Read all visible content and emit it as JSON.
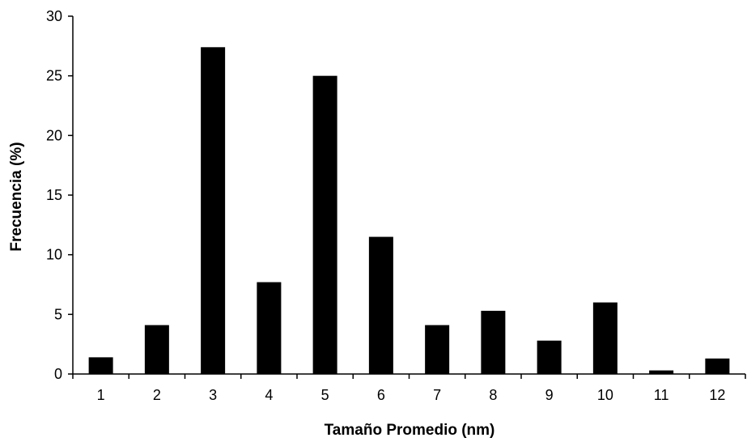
{
  "chart_data": {
    "type": "bar",
    "title": "",
    "xlabel": "Tamaño Promedio (nm)",
    "ylabel": "Frecuencia (%)",
    "categories": [
      "1",
      "2",
      "3",
      "4",
      "5",
      "6",
      "7",
      "8",
      "9",
      "10",
      "11",
      "12"
    ],
    "values": [
      1.4,
      4.1,
      27.4,
      7.7,
      25.0,
      11.5,
      4.1,
      5.3,
      2.8,
      6.0,
      0.3,
      1.3
    ],
    "ylim": [
      0,
      30
    ],
    "yticks": [
      "0",
      "5",
      "10",
      "15",
      "20",
      "25",
      "30"
    ],
    "grid": false,
    "legend": "none",
    "bar_color": "#000000",
    "axis_color": "#000000"
  }
}
